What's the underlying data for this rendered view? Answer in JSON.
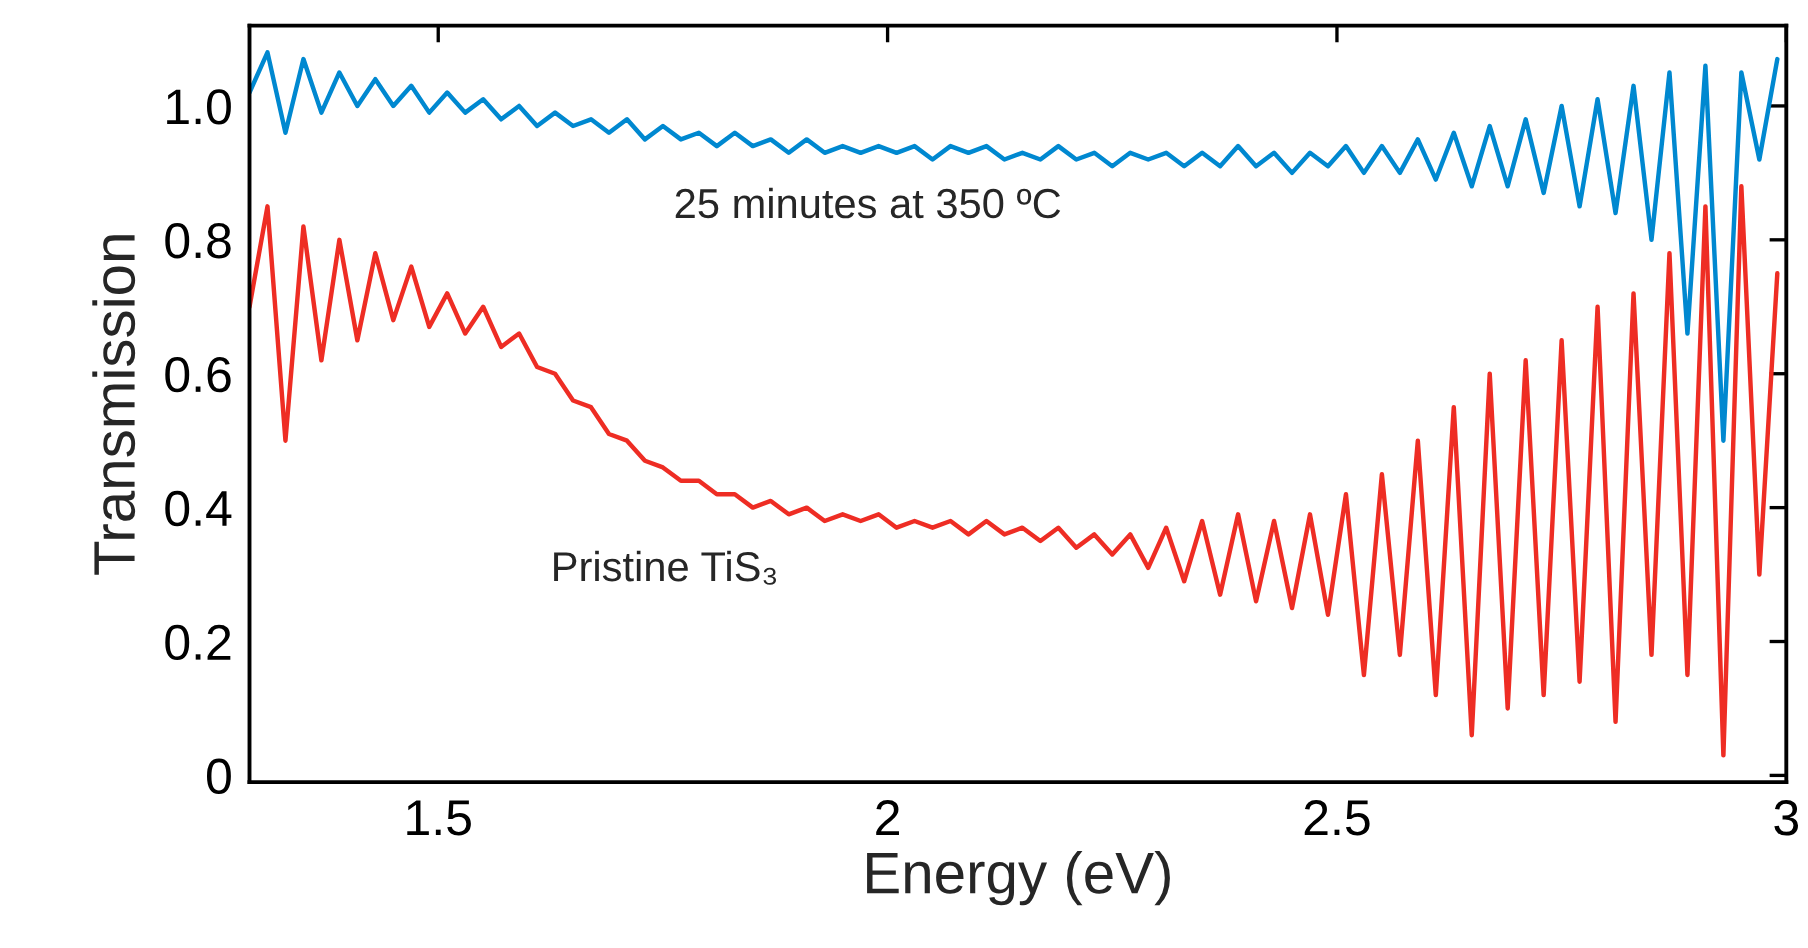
{
  "chart_data": {
    "type": "line",
    "xlabel": "Energy (eV)",
    "ylabel": "Transmission",
    "x": [
      1.29,
      1.31,
      1.33,
      1.35,
      1.37,
      1.39,
      1.41,
      1.43,
      1.45,
      1.47,
      1.49,
      1.51,
      1.53,
      1.55,
      1.57,
      1.59,
      1.61,
      1.63,
      1.65,
      1.67,
      1.69,
      1.71,
      1.73,
      1.75,
      1.77,
      1.79,
      1.81,
      1.83,
      1.85,
      1.87,
      1.89,
      1.91,
      1.93,
      1.95,
      1.97,
      1.99,
      2.01,
      2.03,
      2.05,
      2.07,
      2.09,
      2.11,
      2.13,
      2.15,
      2.17,
      2.19,
      2.21,
      2.23,
      2.25,
      2.27,
      2.29,
      2.31,
      2.33,
      2.35,
      2.37,
      2.39,
      2.41,
      2.43,
      2.45,
      2.47,
      2.49,
      2.51,
      2.53,
      2.55,
      2.57,
      2.59,
      2.61,
      2.63,
      2.65,
      2.67,
      2.69,
      2.71,
      2.73,
      2.75,
      2.77,
      2.79,
      2.81,
      2.83,
      2.85,
      2.87,
      2.89,
      2.91,
      2.93,
      2.95,
      2.97,
      2.99
    ],
    "series": [
      {
        "color": "#0088d0",
        "values": [
          1.02,
          1.08,
          0.96,
          1.07,
          0.99,
          1.05,
          1.0,
          1.04,
          1.0,
          1.03,
          0.99,
          1.02,
          0.99,
          1.01,
          0.98,
          1.0,
          0.97,
          0.99,
          0.97,
          0.98,
          0.96,
          0.98,
          0.95,
          0.97,
          0.95,
          0.96,
          0.94,
          0.96,
          0.94,
          0.95,
          0.93,
          0.95,
          0.93,
          0.94,
          0.93,
          0.94,
          0.93,
          0.94,
          0.92,
          0.94,
          0.93,
          0.94,
          0.92,
          0.93,
          0.92,
          0.94,
          0.92,
          0.93,
          0.91,
          0.93,
          0.92,
          0.93,
          0.91,
          0.93,
          0.91,
          0.94,
          0.91,
          0.93,
          0.9,
          0.93,
          0.91,
          0.94,
          0.9,
          0.94,
          0.9,
          0.95,
          0.89,
          0.96,
          0.88,
          0.97,
          0.88,
          0.98,
          0.87,
          1.0,
          0.85,
          1.01,
          0.84,
          1.03,
          0.8,
          1.05,
          0.66,
          1.06,
          0.5,
          1.05,
          0.92,
          1.07
        ]
      },
      {
        "color": "#ee2d24",
        "values": [
          0.7,
          0.85,
          0.5,
          0.82,
          0.62,
          0.8,
          0.65,
          0.78,
          0.68,
          0.76,
          0.67,
          0.72,
          0.66,
          0.7,
          0.64,
          0.66,
          0.61,
          0.6,
          0.56,
          0.55,
          0.51,
          0.5,
          0.47,
          0.46,
          0.44,
          0.44,
          0.42,
          0.42,
          0.4,
          0.41,
          0.39,
          0.4,
          0.38,
          0.39,
          0.38,
          0.39,
          0.37,
          0.38,
          0.37,
          0.38,
          0.36,
          0.38,
          0.36,
          0.37,
          0.35,
          0.37,
          0.34,
          0.36,
          0.33,
          0.36,
          0.31,
          0.37,
          0.29,
          0.38,
          0.27,
          0.39,
          0.26,
          0.38,
          0.25,
          0.39,
          0.24,
          0.42,
          0.15,
          0.45,
          0.18,
          0.5,
          0.12,
          0.55,
          0.06,
          0.6,
          0.1,
          0.62,
          0.12,
          0.65,
          0.14,
          0.7,
          0.08,
          0.72,
          0.18,
          0.78,
          0.15,
          0.85,
          0.03,
          0.88,
          0.3,
          0.75
        ]
      }
    ],
    "annotations": [
      "25 minutes at 350 ºC",
      "Pristine TiS₃"
    ],
    "xlim": [
      1.29,
      3.0
    ],
    "ylim": [
      -0.01,
      1.12
    ],
    "xticks": [
      1.5,
      2,
      2.5,
      3
    ],
    "yticks": [
      0,
      0.2,
      0.4,
      0.6,
      0.8,
      {
        "value": 1.0,
        "label": "1.0"
      }
    ],
    "grid": false,
    "legend": false,
    "marker": "none",
    "line_style": "solid"
  }
}
